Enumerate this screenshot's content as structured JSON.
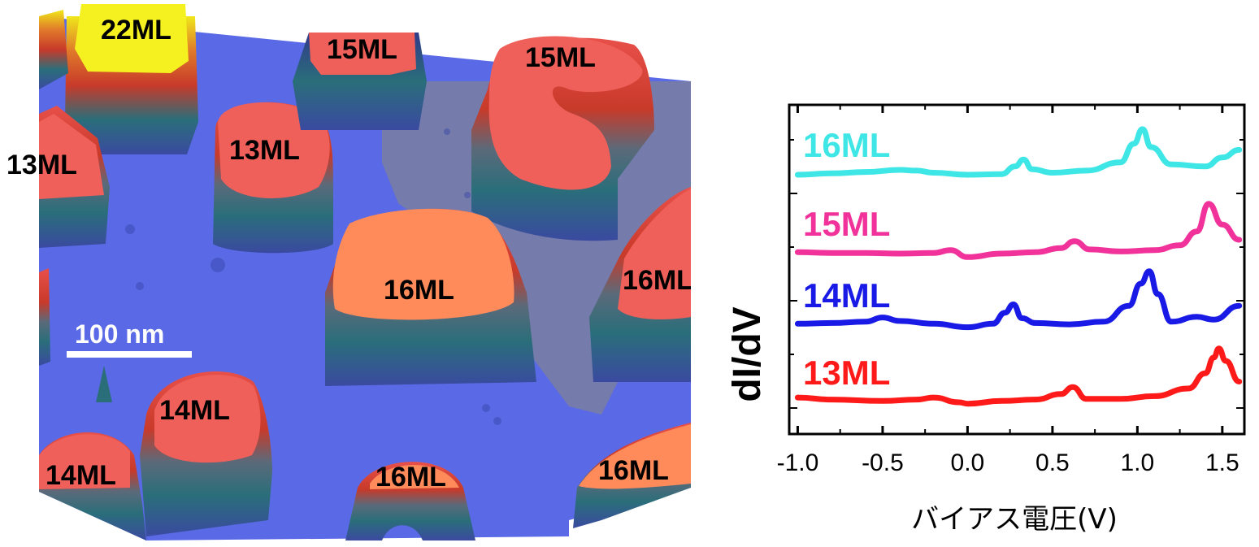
{
  "stm_image": {
    "island_labels": [
      "22ML",
      "15ML",
      "15ML",
      "13ML",
      "13ML",
      "16ML",
      "16ML",
      "14ML",
      "14ML",
      "16ML",
      "16ML"
    ],
    "scale_bar_label": "100 nm",
    "colors": {
      "substrate": "#5a6ae6",
      "red_top": "#f0605a",
      "orange_top": "#ff8a5a",
      "yellow_top": "#f5f020",
      "bare": "#7a7ea0"
    }
  },
  "chart_data": {
    "type": "line",
    "title": "",
    "xlabel": "バイアス電圧(V)",
    "ylabel": "dI/dV",
    "xlim": [
      -1.05,
      1.63
    ],
    "x_ticks": [
      -1.0,
      -0.5,
      0.0,
      0.5,
      1.0,
      1.5
    ],
    "x_tick_labels": [
      "-1.0",
      "-0.5",
      "0.0",
      "0.5",
      "1.0",
      "1.5"
    ],
    "y_tick_labels_shown": false,
    "series": [
      {
        "name": "16ML",
        "color": "#3ee6e6",
        "x": [
          -1.0,
          -0.8,
          -0.6,
          -0.4,
          -0.3,
          -0.2,
          0.0,
          0.2,
          0.28,
          0.33,
          0.38,
          0.5,
          0.7,
          0.9,
          0.98,
          1.03,
          1.08,
          1.2,
          1.4,
          1.5,
          1.6
        ],
        "y": [
          0.0,
          0.02,
          0.04,
          0.07,
          0.06,
          0.03,
          0.0,
          0.01,
          0.12,
          0.22,
          0.08,
          0.03,
          0.06,
          0.18,
          0.45,
          0.66,
          0.4,
          0.15,
          0.12,
          0.25,
          0.36
        ]
      },
      {
        "name": "15ML",
        "color": "#f0329a",
        "x": [
          -1.0,
          -0.8,
          -0.6,
          -0.4,
          -0.2,
          -0.1,
          0.0,
          0.2,
          0.4,
          0.55,
          0.63,
          0.72,
          0.9,
          1.1,
          1.25,
          1.35,
          1.42,
          1.5,
          1.6
        ],
        "y": [
          0.02,
          0.01,
          0.01,
          0.0,
          0.01,
          0.05,
          -0.05,
          0.0,
          0.02,
          0.08,
          0.18,
          0.06,
          0.03,
          0.05,
          0.12,
          0.32,
          0.72,
          0.42,
          0.2
        ]
      },
      {
        "name": "14ML",
        "color": "#1a1ae6",
        "x": [
          -1.0,
          -0.8,
          -0.6,
          -0.5,
          -0.4,
          -0.2,
          0.0,
          0.15,
          0.22,
          0.27,
          0.32,
          0.4,
          0.6,
          0.8,
          0.95,
          1.02,
          1.07,
          1.12,
          1.2,
          1.35,
          1.45,
          1.6
        ],
        "y": [
          0.02,
          0.03,
          0.05,
          0.11,
          0.06,
          0.02,
          -0.03,
          0.02,
          0.18,
          0.3,
          0.1,
          0.03,
          0.01,
          0.05,
          0.28,
          0.6,
          0.78,
          0.45,
          0.05,
          0.12,
          0.08,
          0.28
        ]
      },
      {
        "name": "13ML",
        "color": "#ff1a1a",
        "x": [
          -1.0,
          -0.8,
          -0.5,
          -0.3,
          -0.2,
          -0.05,
          0.0,
          0.2,
          0.4,
          0.55,
          0.62,
          0.7,
          0.9,
          1.1,
          1.3,
          1.4,
          1.45,
          1.48,
          1.52,
          1.6
        ],
        "y": [
          0.07,
          0.04,
          0.02,
          0.04,
          0.07,
          0.0,
          -0.02,
          0.02,
          0.04,
          0.12,
          0.22,
          0.05,
          0.05,
          0.09,
          0.2,
          0.42,
          0.65,
          0.78,
          0.6,
          0.3
        ]
      }
    ]
  }
}
